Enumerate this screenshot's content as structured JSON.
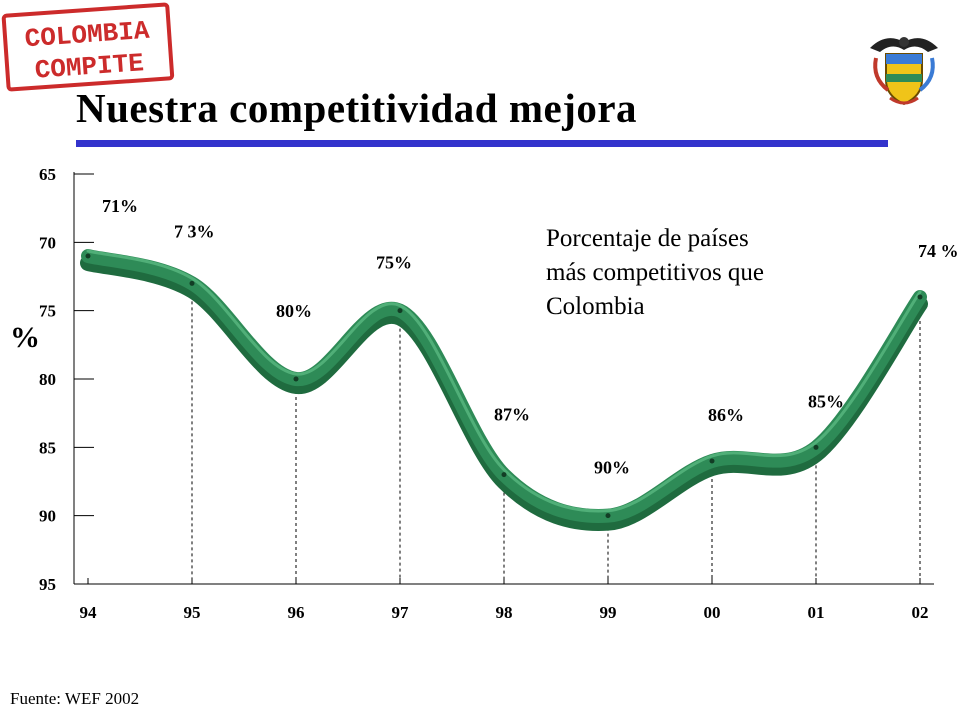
{
  "logo": {
    "line1": "COLOMBIA",
    "line2": "COMPITE"
  },
  "header": {
    "title": "Nuestra competitividad mejora"
  },
  "crest": {
    "icon": "colombia-coat-of-arms-icon"
  },
  "description": {
    "lines": [
      "Porcentaje de países",
      "más competitivos que",
      "Colombia"
    ]
  },
  "source": "Fuente: WEF 2002",
  "colors": {
    "series": "#2e8b57",
    "title_rule": "#3333cc",
    "logo": "#cc2b2b"
  },
  "chart_data": {
    "type": "line",
    "title": "",
    "xlabel": "",
    "ylabel": "%",
    "y_inverted": true,
    "ylim": [
      65,
      95
    ],
    "yticks": [
      65,
      70,
      75,
      80,
      85,
      90,
      95
    ],
    "categories": [
      "94",
      "95",
      "96",
      "97",
      "98",
      "99",
      "00",
      "01",
      "02"
    ],
    "series": [
      {
        "values": [
          71,
          73,
          80,
          75,
          87,
          90,
          86,
          85,
          74
        ],
        "labels": [
          "71%",
          "7 3%",
          "80%",
          "75%",
          "87%",
          "90%",
          "86%",
          "85%",
          "74 %"
        ]
      }
    ]
  }
}
